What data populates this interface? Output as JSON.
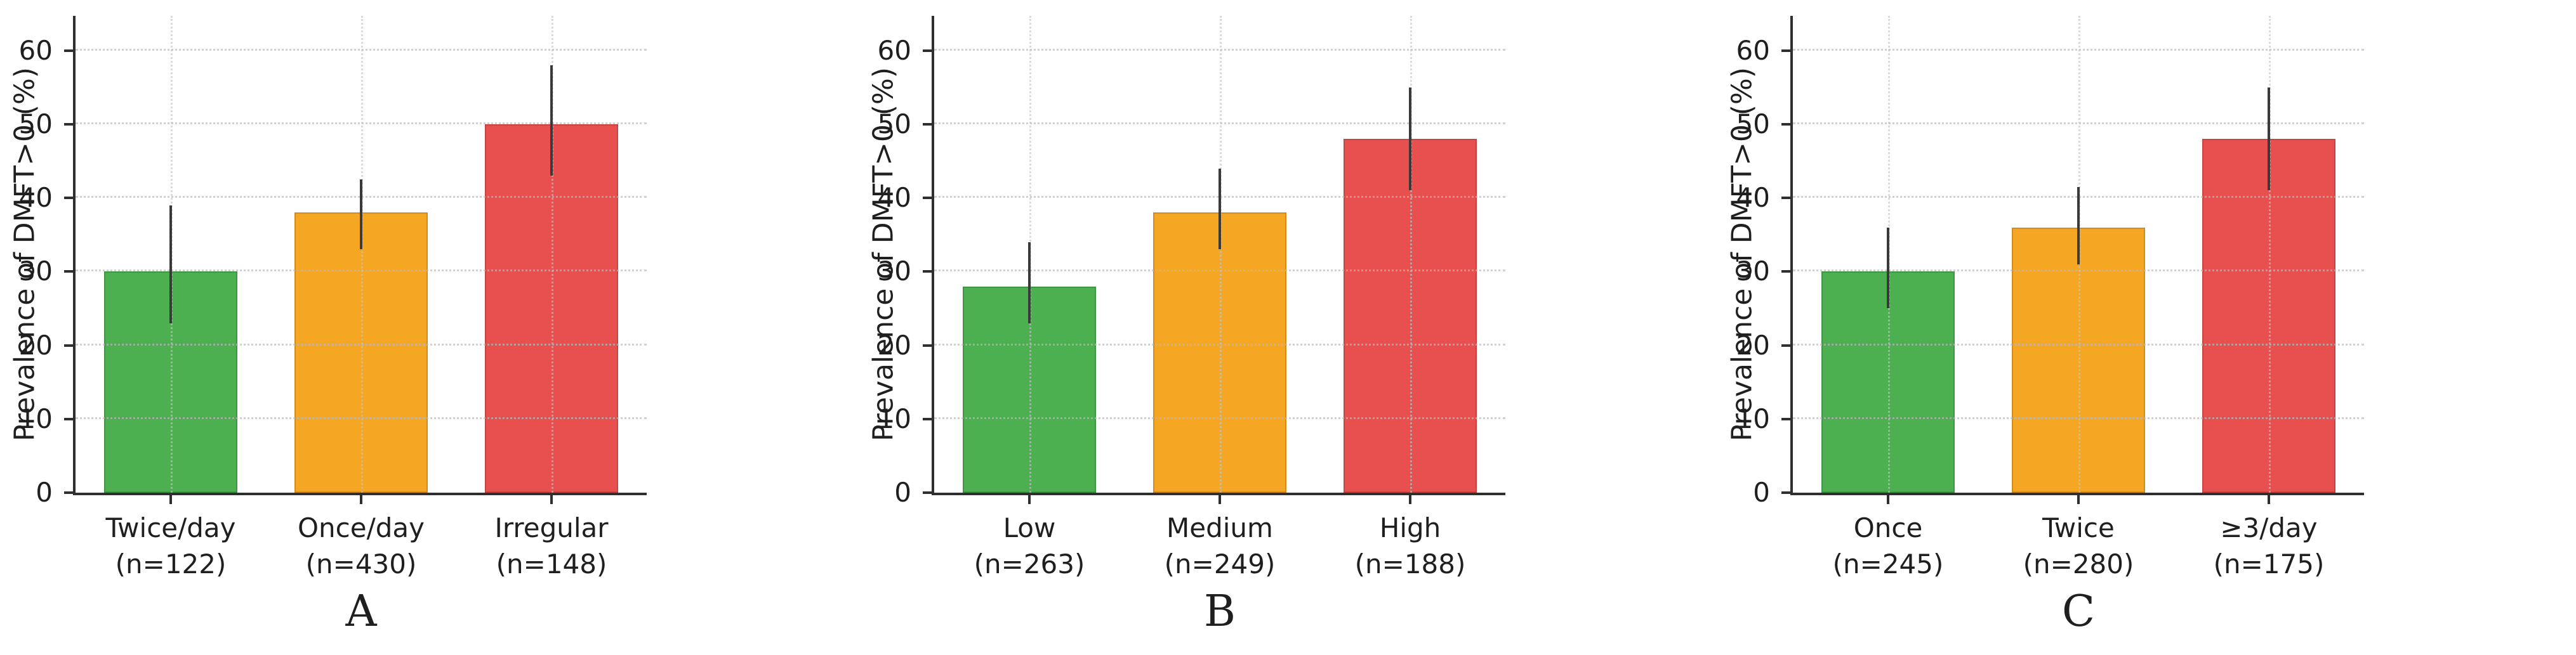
{
  "ylabel": "Prevalence of DMFT>0 (%)",
  "style": {
    "axis_color": "#2f2f2f",
    "error_bar_color": "#3a3a3a",
    "grid_color": "#bbbbbb",
    "text_color": "#1f1f1f",
    "background": "#ffffff",
    "bar_green": "#4caf50",
    "bar_orange": "#f5a623",
    "bar_red": "#e85050"
  },
  "chart_data": [
    {
      "type": "bar",
      "panel_label": "A",
      "ylabel": "Prevalence of DMFT>0 (%)",
      "ylim": [
        0,
        64.7
      ],
      "yticks": [
        0,
        10,
        20,
        30,
        40,
        50,
        60
      ],
      "grid": "dotted horizontal and vertical, drawn over bars",
      "categories": [
        "Twice/day",
        "Once/day",
        "Irregular"
      ],
      "category_sublabels": [
        "(n=122)",
        "(n=430)",
        "(n=148)"
      ],
      "values": [
        30,
        38,
        50
      ],
      "error_low": [
        23,
        33,
        43
      ],
      "error_high": [
        39,
        42.5,
        58
      ],
      "bar_colors": [
        "#4caf50",
        "#f5a623",
        "#e85050"
      ]
    },
    {
      "type": "bar",
      "panel_label": "B",
      "ylabel": "Prevalence of DMFT>0 (%)",
      "ylim": [
        0,
        64.7
      ],
      "yticks": [
        0,
        10,
        20,
        30,
        40,
        50,
        60
      ],
      "grid": "dotted horizontal and vertical, drawn over bars",
      "categories": [
        "Low",
        "Medium",
        "High"
      ],
      "category_sublabels": [
        "(n=263)",
        "(n=249)",
        "(n=188)"
      ],
      "values": [
        28,
        38,
        48
      ],
      "error_low": [
        23,
        33,
        41
      ],
      "error_high": [
        34,
        44,
        55
      ],
      "bar_colors": [
        "#4caf50",
        "#f5a623",
        "#e85050"
      ]
    },
    {
      "type": "bar",
      "panel_label": "C",
      "ylabel": "Prevalence of DMFT>0 (%)",
      "ylim": [
        0,
        64.7
      ],
      "yticks": [
        0,
        10,
        20,
        30,
        40,
        50,
        60
      ],
      "grid": "dotted horizontal and vertical, drawn over bars",
      "categories": [
        "Once",
        "Twice",
        "≥3/day"
      ],
      "category_sublabels": [
        "(n=245)",
        "(n=280)",
        "(n=175)"
      ],
      "values": [
        30,
        36,
        48
      ],
      "error_low": [
        25,
        31,
        41
      ],
      "error_high": [
        36,
        41.5,
        55
      ],
      "bar_colors": [
        "#4caf50",
        "#f5a623",
        "#e85050"
      ]
    }
  ]
}
